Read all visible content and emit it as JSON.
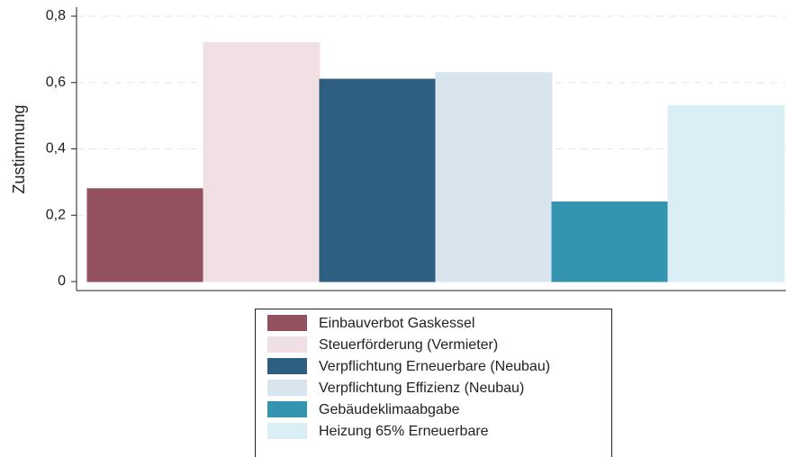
{
  "chart_data": {
    "type": "bar",
    "y_label": "Zustimmung",
    "series": [
      {
        "name": "Einbauverbot Gaskessel",
        "color": "#93505f",
        "values": [
          0.28
        ]
      },
      {
        "name": "Steuerförderung (Vermieter)",
        "color": "#f0e0e4",
        "values": [
          0.72
        ]
      },
      {
        "name": "Verpflichtung Erneuerbare (Neubau)",
        "color": "#2f5f80",
        "values": [
          0.61
        ]
      },
      {
        "name": "Verpflichtung Effizienz (Neubau)",
        "color": "#d9e5ee",
        "values": [
          0.63
        ]
      },
      {
        "name": "Gebäudeklimaabgabe",
        "color": "#3493ae",
        "values": [
          0.24
        ]
      },
      {
        "name": "Heizung 65% Erneuerbare",
        "color": "#d9eef5",
        "values": [
          0.53
        ]
      }
    ],
    "ylim": [
      0,
      0.8
    ],
    "yticks": [
      0,
      {
        "value": 0.2,
        "label": "0,2"
      },
      {
        "value": 0.4,
        "label": "0,4"
      },
      {
        "value": 0.6,
        "label": "0,6"
      },
      {
        "value": 0.8,
        "label": "0,8"
      }
    ],
    "grid": true
  }
}
